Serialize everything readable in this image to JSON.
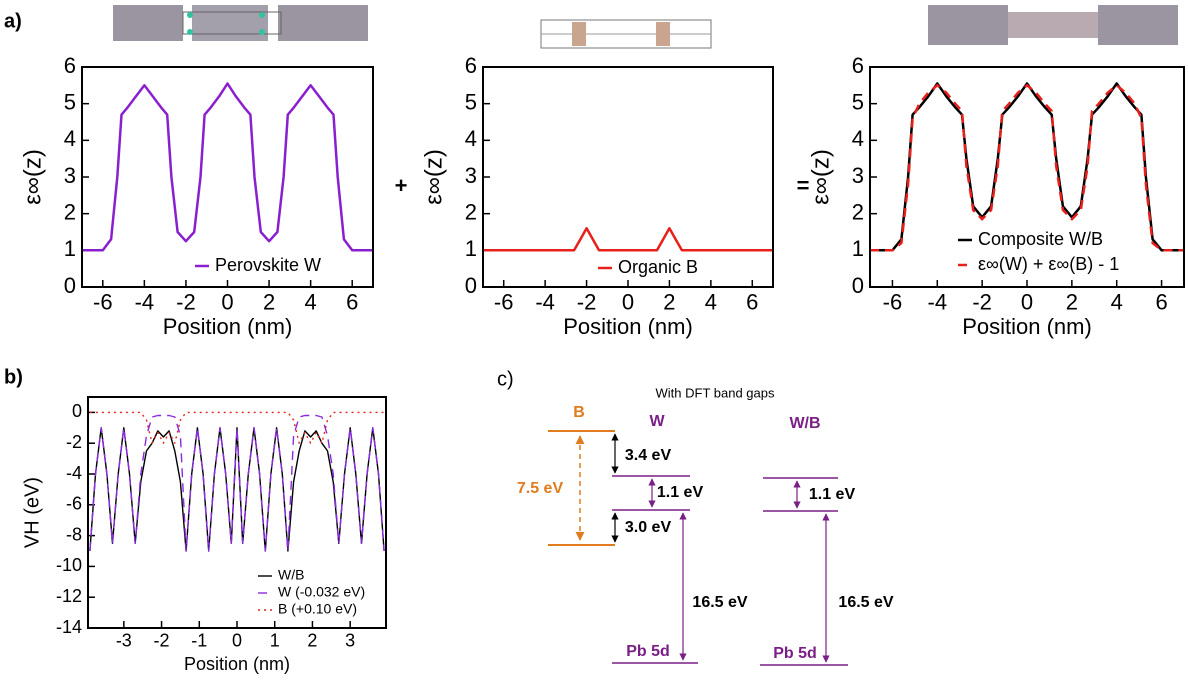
{
  "panels": {
    "a": "a)",
    "b": "b)",
    "c": "c)"
  },
  "operators": [
    "+",
    "="
  ],
  "chart_data": [
    {
      "type": "line",
      "x_label": "Position (nm)",
      "y_label": "ε∞(z)",
      "x": [
        -7,
        -6,
        -5.6,
        -5.3,
        -5.1,
        -4.8,
        -4.4,
        -4,
        -3.6,
        -3.2,
        -2.9,
        -2.7,
        -2.4,
        -2,
        -1.6,
        -1.3,
        -1.1,
        -0.8,
        -0.4,
        0,
        0.4,
        0.8,
        1.1,
        1.3,
        1.6,
        2,
        2.4,
        2.7,
        2.9,
        3.2,
        3.6,
        4,
        4.4,
        4.8,
        5.1,
        5.3,
        5.6,
        6,
        7
      ],
      "series": [
        {
          "name": "Perovskite W",
          "color": "#8a1fd0",
          "dash": "solid",
          "values": [
            1,
            1,
            1.3,
            3.0,
            4.7,
            4.9,
            5.2,
            5.5,
            5.2,
            4.9,
            4.7,
            3.0,
            1.5,
            1.25,
            1.5,
            3.0,
            4.7,
            4.9,
            5.2,
            5.55,
            5.2,
            4.9,
            4.7,
            3.0,
            1.5,
            1.25,
            1.5,
            3.0,
            4.7,
            4.9,
            5.2,
            5.5,
            5.2,
            4.9,
            4.7,
            3.0,
            1.3,
            1,
            1
          ]
        }
      ],
      "xlim": [
        -7,
        7
      ],
      "ylim": [
        0,
        6
      ],
      "xticks": [
        -6,
        -4,
        -2,
        0,
        2,
        4,
        6
      ],
      "yticks": [
        0,
        1,
        2,
        3,
        4,
        5,
        6
      ],
      "legend": "lower right"
    },
    {
      "type": "line",
      "x_label": "Position (nm)",
      "y_label": "ε∞(z)",
      "x": [
        -7,
        -2.6,
        -2.3,
        -2,
        -1.7,
        -1.4,
        1.4,
        1.7,
        2,
        2.3,
        2.6,
        7
      ],
      "series": [
        {
          "name": "Organic B",
          "color": "#e8201c",
          "dash": "solid",
          "values": [
            1,
            1,
            1.3,
            1.6,
            1.3,
            1,
            1,
            1.3,
            1.6,
            1.3,
            1,
            1
          ]
        }
      ],
      "xlim": [
        -7,
        7
      ],
      "ylim": [
        0,
        6
      ],
      "xticks": [
        -6,
        -4,
        -2,
        0,
        2,
        4,
        6
      ],
      "yticks": [
        0,
        1,
        2,
        3,
        4,
        5,
        6
      ],
      "legend": "lower right"
    },
    {
      "type": "line",
      "x_label": "Position (nm)",
      "y_label": "ε∞(z)",
      "x": [
        -7,
        -6,
        -5.6,
        -5.3,
        -5.1,
        -4.8,
        -4.4,
        -4,
        -3.6,
        -3.2,
        -2.9,
        -2.7,
        -2.4,
        -2,
        -1.6,
        -1.3,
        -1.1,
        -0.8,
        -0.4,
        0,
        0.4,
        0.8,
        1.1,
        1.3,
        1.6,
        2,
        2.4,
        2.7,
        2.9,
        3.2,
        3.6,
        4,
        4.4,
        4.8,
        5.1,
        5.3,
        5.6,
        6,
        7
      ],
      "series": [
        {
          "name": "Composite W/B",
          "color": "#000000",
          "dash": "solid",
          "values": [
            1,
            1,
            1.3,
            3.0,
            4.7,
            4.9,
            5.2,
            5.55,
            5.2,
            4.9,
            4.7,
            3.5,
            2.2,
            1.9,
            2.2,
            3.5,
            4.7,
            4.9,
            5.2,
            5.55,
            5.2,
            4.9,
            4.7,
            3.5,
            2.2,
            1.9,
            2.2,
            3.5,
            4.7,
            4.9,
            5.2,
            5.55,
            5.2,
            4.9,
            4.7,
            3.0,
            1.3,
            1,
            1
          ]
        },
        {
          "name": "ε∞(W) + ε∞(B) - 1",
          "color": "#e8201c",
          "dash": "dashed",
          "values": [
            1,
            1,
            1.2,
            2.8,
            4.6,
            5.0,
            5.3,
            5.5,
            5.3,
            5.0,
            4.8,
            3.3,
            2.1,
            1.85,
            2.1,
            3.3,
            4.8,
            5.0,
            5.3,
            5.5,
            5.3,
            5.0,
            4.8,
            3.3,
            2.1,
            1.85,
            2.1,
            3.3,
            4.8,
            5.0,
            5.3,
            5.5,
            5.3,
            5.0,
            4.6,
            2.8,
            1.2,
            1,
            1
          ]
        }
      ],
      "xlim": [
        -7,
        7
      ],
      "ylim": [
        0,
        6
      ],
      "xticks": [
        -6,
        -4,
        -2,
        0,
        2,
        4,
        6
      ],
      "yticks": [
        0,
        1,
        2,
        3,
        4,
        5,
        6
      ],
      "legend": "lower right"
    },
    {
      "type": "line",
      "x_label": "Position (nm)",
      "y_label": "VH (eV)",
      "x": [
        -3.9,
        -3.75,
        -3.6,
        -3.45,
        -3.3,
        -3.15,
        -3.0,
        -2.85,
        -2.7,
        -2.55,
        -2.4,
        -2.25,
        -2.1,
        -1.95,
        -1.8,
        -1.65,
        -1.5,
        -1.35,
        -1.2,
        -1.05,
        -0.9,
        -0.75,
        -0.6,
        -0.45,
        -0.3,
        -0.15,
        0,
        0.15,
        0.3,
        0.45,
        0.6,
        0.75,
        0.9,
        1.05,
        1.2,
        1.35,
        1.5,
        1.65,
        1.8,
        1.95,
        2.1,
        2.25,
        2.4,
        2.55,
        2.7,
        2.85,
        3.0,
        3.15,
        3.3,
        3.45,
        3.6,
        3.75,
        3.9
      ],
      "series": [
        {
          "name": "W/B",
          "color": "#000000",
          "dash": "solid",
          "values": [
            -9,
            -4,
            -1,
            -4,
            -8.5,
            -4,
            -1,
            -4,
            -8.5,
            -4.5,
            -2.5,
            -2,
            -1.2,
            -1.6,
            -1.2,
            -2.5,
            -4.5,
            -9,
            -4,
            -1,
            -4,
            -9,
            -4,
            -1,
            -4,
            -8.5,
            -1,
            -8.5,
            -4,
            -1,
            -4,
            -9,
            -4,
            -1,
            -4,
            -9,
            -4.5,
            -2.5,
            -1.2,
            -1.6,
            -1.2,
            -2,
            -2.5,
            -4.5,
            -8.5,
            -4,
            -1,
            -4,
            -8.5,
            -4,
            -1,
            -4,
            -9
          ]
        },
        {
          "name": "W (-0.032 eV)",
          "color": "#8a2be2",
          "dash": "dashed",
          "values": [
            -9,
            -4,
            -1,
            -4,
            -8.5,
            -4,
            -1,
            -4,
            -8.5,
            -4,
            -1.5,
            -0.3,
            -0.2,
            -0.2,
            -0.2,
            -0.3,
            -1.5,
            -9,
            -4,
            -1,
            -4,
            -9,
            -4,
            -1,
            -4,
            -8.5,
            -1,
            -8.5,
            -4,
            -1,
            -4,
            -9,
            -4,
            -1,
            -4,
            -9,
            -1.5,
            -0.3,
            -0.2,
            -0.2,
            -0.2,
            -0.3,
            -1.5,
            -4,
            -8.5,
            -4,
            -1,
            -4,
            -8.5,
            -4,
            -1,
            -4,
            -9
          ]
        },
        {
          "name": "B (+0.10 eV)",
          "color": "#e8201c",
          "dash": "dotted",
          "values": [
            0,
            0,
            0,
            0,
            0,
            0,
            0,
            0,
            0,
            0,
            -0.5,
            -2,
            -1.3,
            -2,
            -1.3,
            -2,
            -0.5,
            0,
            0,
            0,
            0,
            0,
            0,
            0,
            0,
            0,
            0,
            0,
            0,
            0,
            0,
            0,
            0,
            0,
            0,
            0,
            -0.5,
            -2,
            -1.3,
            -2,
            -1.3,
            -2,
            -0.5,
            0,
            0,
            0,
            0,
            0,
            0,
            0,
            0,
            0,
            0
          ]
        }
      ],
      "xlim": [
        -3.95,
        3.95
      ],
      "ylim": [
        -14,
        1
      ],
      "xticks": [
        -3,
        -2,
        -1,
        0,
        1,
        2,
        3
      ],
      "yticks": [
        0,
        -2,
        -4,
        -6,
        -8,
        -10,
        -12,
        -14
      ],
      "legend": "lower right"
    }
  ],
  "diagram": {
    "title": "With DFT band gaps",
    "columns": [
      "B",
      "W",
      "W/B"
    ],
    "b_gap": "7.5 eV",
    "w_offset_top": "3.4 eV",
    "w_gap": "1.1 eV",
    "w_offset_bottom": "3.0 eV",
    "w_pb": "16.5 eV",
    "w_pb_label": "Pb 5d",
    "wb_gap": "1.1 eV",
    "wb_pb": "16.5 eV",
    "wb_pb_label": "Pb 5d"
  }
}
